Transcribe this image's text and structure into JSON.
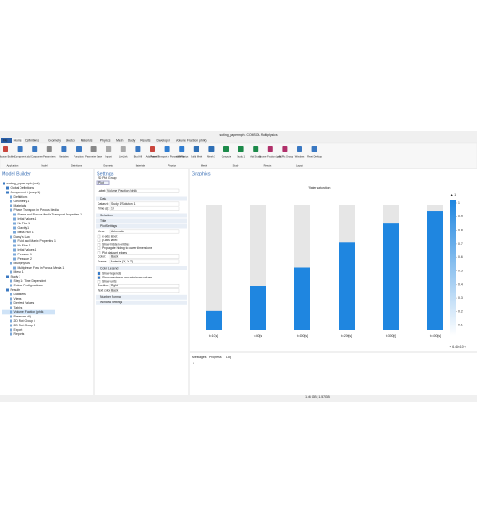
{
  "window": {
    "title": "sorting_paper.mph - COMSOL Multiphysics"
  },
  "ribbon": {
    "tabs": [
      "File",
      "Home",
      "Definitions",
      "Geometry",
      "Sketch",
      "Materials",
      "Physics",
      "Mesh",
      "Study",
      "Results",
      "Developer",
      "Volume Fraction (phlk)"
    ],
    "buttons": [
      "Application Builder",
      "Component",
      "Add Component",
      "Parameters",
      "Variables",
      "Functions",
      "Parameter Case",
      "Import",
      "LiveLink",
      "Build All",
      "Add Material",
      "Phase Transport in Porous Media",
      "Add Physics",
      "Build Mesh",
      "Mesh 1",
      "Compute",
      "Study 1",
      "Add Study",
      "Volume Fraction (phlk)",
      "Add Plot Group",
      "Windows",
      "Reset Desktop"
    ],
    "groups": [
      "Application",
      "Model",
      "Definitions",
      "Geometry",
      "Materials",
      "Physics",
      "Mesh",
      "Study",
      "Results",
      "Layout"
    ]
  },
  "model_builder": {
    "title": "Model Builder",
    "tree": [
      {
        "label": "sorting_paper.mph (root)",
        "children": [
          {
            "label": "Global Definitions"
          },
          {
            "label": "Component 1 (comp1)",
            "children": [
              {
                "label": "Definitions"
              },
              {
                "label": "Geometry 1"
              },
              {
                "label": "Materials"
              },
              {
                "label": "Phase Transport in Porous Media",
                "children": [
                  {
                    "label": "Phase and Porous Media Transport Properties 1"
                  },
                  {
                    "label": "Initial Values 1"
                  },
                  {
                    "label": "No Flux 1"
                  },
                  {
                    "label": "Gravity 1"
                  },
                  {
                    "label": "Mass Flux 1"
                  }
                ]
              },
              {
                "label": "Darcy's Law",
                "children": [
                  {
                    "label": "Fluid and Matrix Properties 1"
                  },
                  {
                    "label": "No Flow 1"
                  },
                  {
                    "label": "Initial Values 1"
                  },
                  {
                    "label": "Pressure 1"
                  },
                  {
                    "label": "Pressure 2"
                  }
                ]
              },
              {
                "label": "Multiphysics",
                "children": [
                  {
                    "label": "Multiphase Flow in Porous Media 1"
                  }
                ]
              },
              {
                "label": "Mesh 1"
              }
            ]
          },
          {
            "label": "Study 1",
            "children": [
              {
                "label": "Step 1: Time Dependent"
              },
              {
                "label": "Solver Configurations"
              }
            ]
          },
          {
            "label": "Results",
            "children": [
              {
                "label": "Datasets"
              },
              {
                "label": "Views"
              },
              {
                "label": "Derived Values"
              },
              {
                "label": "Tables"
              },
              {
                "label": "Volume Fraction (phlk)"
              },
              {
                "label": "Pressure (dl)"
              },
              {
                "label": "2D Plot Group 4"
              },
              {
                "label": "2D Plot Group 5"
              },
              {
                "label": "Export"
              },
              {
                "label": "Reports"
              }
            ]
          }
        ]
      }
    ]
  },
  "settings": {
    "title": "Settings",
    "subtitle": "2D Plot Group",
    "plot_button": "Plot",
    "label_field": {
      "label": "Label:",
      "value": "Volume Fraction (phlk)"
    },
    "sections": [
      {
        "title": "Data",
        "fields": [
          {
            "label": "Dataset:",
            "value": "Study 1/Solution 1"
          },
          {
            "label": "Time (s):",
            "value": "10"
          }
        ]
      },
      {
        "title": "Selection"
      },
      {
        "title": "Title"
      },
      {
        "title": "Plot Settings",
        "fields": [
          {
            "label": "View:",
            "value": "Automatic"
          }
        ],
        "checkboxes": [
          {
            "label": "x-axis label:",
            "checked": false
          },
          {
            "label": "y-axis label:",
            "checked": false
          },
          {
            "label": "Show hidden entities",
            "checked": false
          },
          {
            "label": "Propagate hiding to lower dimensions",
            "checked": false
          },
          {
            "label": "Plot dataset edges",
            "checked": false
          }
        ],
        "fields2": [
          {
            "label": "Color:",
            "value": "Black"
          },
          {
            "label": "Frame:",
            "value": "Material (X, Y, Z)"
          }
        ]
      },
      {
        "title": "Color Legend",
        "checkboxes": [
          {
            "label": "Show legends",
            "checked": true
          },
          {
            "label": "Show maximum and minimum values",
            "checked": true
          },
          {
            "label": "Show units",
            "checked": false
          }
        ],
        "fields2": [
          {
            "label": "Position:",
            "value": "Right"
          },
          {
            "label": "Text color:",
            "value": "Black"
          }
        ]
      },
      {
        "title": "Number Format"
      },
      {
        "title": "Window Settings"
      }
    ]
  },
  "graphics": {
    "title": "Graphics",
    "plot_title": "Water saturation",
    "columns": [
      {
        "label": "t=10[s]",
        "fill": 0.15
      },
      {
        "label": "t=40[s]",
        "fill": 0.35
      },
      {
        "label": "t=100[s]",
        "fill": 0.5
      },
      {
        "label": "t=200[s]",
        "fill": 0.7
      },
      {
        "label": "t=300[s]",
        "fill": 0.85
      },
      {
        "label": "t=400[s]",
        "fill": 0.95
      }
    ],
    "legend": {
      "max_label": "▲ 1",
      "min_label": "▼ 6.46×10⁻³",
      "ticks": [
        1,
        0.9,
        0.8,
        0.7,
        0.6,
        0.5,
        0.4,
        0.3,
        0.2,
        0.1
      ]
    }
  },
  "messages": {
    "tabs": [
      "Messages",
      "Progress",
      "Log"
    ],
    "content": "\\"
  },
  "status": "1.46 GB | 1.57 GB"
}
